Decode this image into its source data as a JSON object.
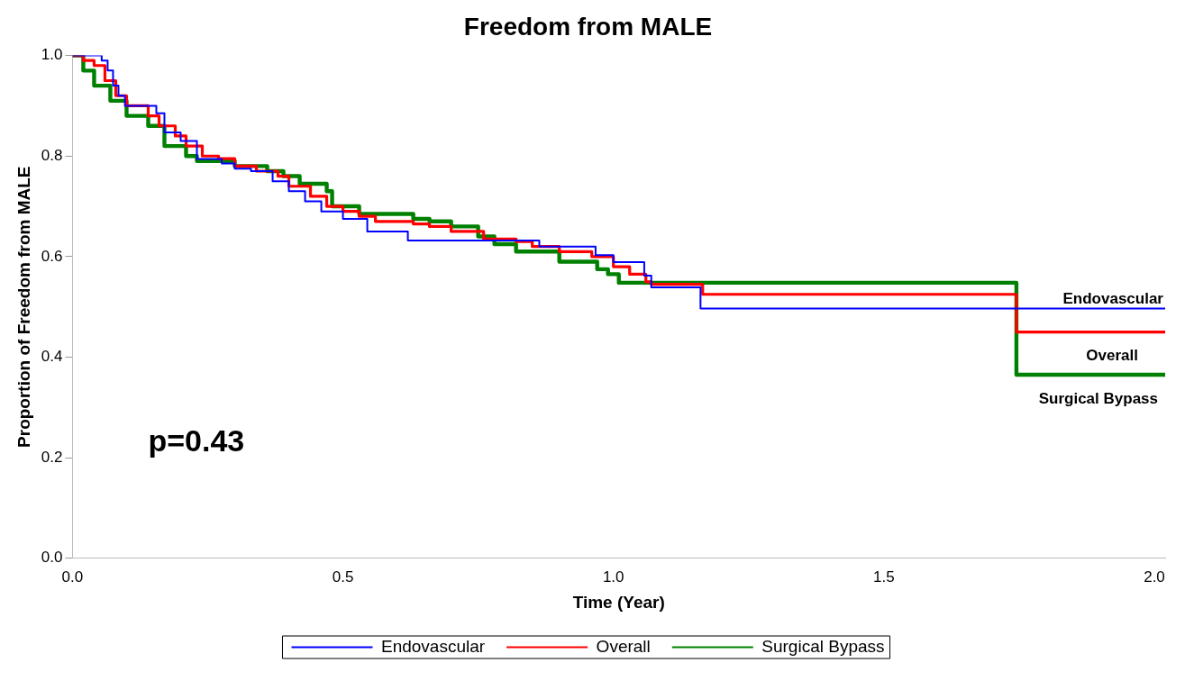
{
  "chart_data": {
    "type": "step",
    "title": "Freedom from MALE",
    "xlabel": "Time (Year)",
    "ylabel": "Proportion of Freedom from MALE",
    "xlim": [
      0,
      2.02
    ],
    "xticks": [
      {
        "value": 0,
        "label": "0.0"
      },
      0.5,
      {
        "value": 1,
        "label": "1.0"
      },
      1.5,
      {
        "value": 2,
        "label": "2.0"
      }
    ],
    "ylim": [
      0,
      1
    ],
    "yticks": [
      {
        "value": 0,
        "label": "0.0"
      },
      0.2,
      0.4,
      0.6,
      0.8,
      {
        "value": 1,
        "label": "1.0"
      }
    ],
    "grid": false,
    "legend": "bottom",
    "marker": "none",
    "line_style": "solid",
    "annotations": [
      "p=0.43"
    ],
    "series": [
      {
        "name": "Endovascular",
        "color": "#0000ff",
        "x": [
          0,
          0.054,
          0.065,
          0.075,
          0.085,
          0.097,
          0.155,
          0.17,
          0.2,
          0.23,
          0.276,
          0.3,
          0.33,
          0.37,
          0.4,
          0.43,
          0.46,
          0.5,
          0.545,
          0.62,
          0.863,
          0.967,
          1.0,
          1.057,
          1.07,
          1.161,
          2.02
        ],
        "values": [
          1,
          0.99,
          0.97,
          0.94,
          0.92,
          0.9,
          0.885,
          0.847,
          0.83,
          0.794,
          0.785,
          0.775,
          0.77,
          0.75,
          0.73,
          0.71,
          0.69,
          0.675,
          0.65,
          0.632,
          0.62,
          0.603,
          0.589,
          0.562,
          0.539,
          0.497,
          0.497
        ]
      },
      {
        "name": "Overall",
        "color": "#ff0000",
        "x": [
          0,
          0.02,
          0.04,
          0.06,
          0.08,
          0.1,
          0.14,
          0.16,
          0.19,
          0.21,
          0.24,
          0.27,
          0.3,
          0.34,
          0.38,
          0.4,
          0.44,
          0.47,
          0.5,
          0.53,
          0.56,
          0.63,
          0.66,
          0.7,
          0.76,
          0.82,
          0.85,
          0.9,
          0.96,
          1.0,
          1.03,
          1.06,
          1.07,
          1.165,
          1.745,
          2.02
        ],
        "values": [
          1,
          0.99,
          0.98,
          0.95,
          0.92,
          0.9,
          0.88,
          0.86,
          0.84,
          0.82,
          0.8,
          0.795,
          0.78,
          0.77,
          0.76,
          0.74,
          0.72,
          0.7,
          0.69,
          0.68,
          0.67,
          0.665,
          0.66,
          0.65,
          0.635,
          0.63,
          0.62,
          0.61,
          0.6,
          0.58,
          0.565,
          0.55,
          0.545,
          0.525,
          0.45,
          0.45
        ]
      },
      {
        "name": "Surgical Bypass",
        "color": "#008000",
        "x": [
          0,
          0.02,
          0.04,
          0.07,
          0.1,
          0.14,
          0.17,
          0.21,
          0.23,
          0.3,
          0.36,
          0.39,
          0.42,
          0.47,
          0.48,
          0.53,
          0.63,
          0.66,
          0.7,
          0.75,
          0.78,
          0.82,
          0.9,
          0.97,
          0.99,
          1.01,
          1.745,
          2.02
        ],
        "values": [
          1,
          0.97,
          0.94,
          0.91,
          0.88,
          0.86,
          0.82,
          0.8,
          0.79,
          0.78,
          0.77,
          0.76,
          0.745,
          0.73,
          0.7,
          0.685,
          0.675,
          0.67,
          0.66,
          0.64,
          0.625,
          0.61,
          0.59,
          0.575,
          0.565,
          0.548,
          0.365,
          0.365
        ]
      }
    ]
  }
}
